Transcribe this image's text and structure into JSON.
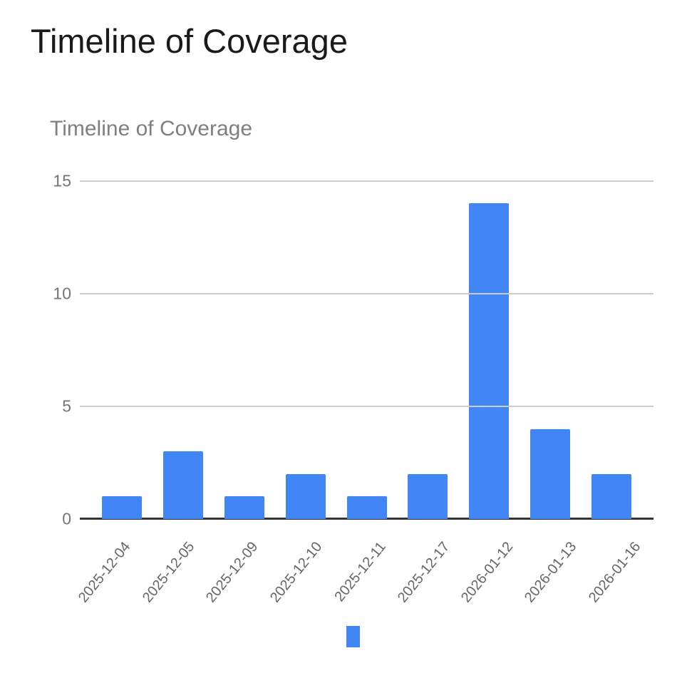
{
  "page": {
    "heading": "Timeline of Coverage"
  },
  "chart_data": {
    "type": "bar",
    "title": "Timeline of Coverage",
    "categories": [
      "2025-12-04",
      "2025-12-05",
      "2025-12-09",
      "2025-12-10",
      "2025-12-11",
      "2025-12-17",
      "2026-01-12",
      "2026-01-13",
      "2026-01-16"
    ],
    "values": [
      1,
      3,
      1,
      2,
      1,
      2,
      14,
      4,
      2
    ],
    "series_name": "",
    "xlabel": "",
    "ylabel": "",
    "yticks": [
      0,
      5,
      10,
      15
    ],
    "ylim": [
      0,
      16
    ],
    "grid": true,
    "legend_position": "bottom",
    "x_label_angle_deg": -51
  },
  "colors": {
    "bar": "#4285F4",
    "gridline": "#cccccc",
    "baseline": "#333333",
    "y_axis_text": "#757575",
    "x_axis_text": "#666666",
    "chart_title_text": "#7f7f7f",
    "heading_text": "#1a1a1a",
    "background": "#ffffff"
  }
}
